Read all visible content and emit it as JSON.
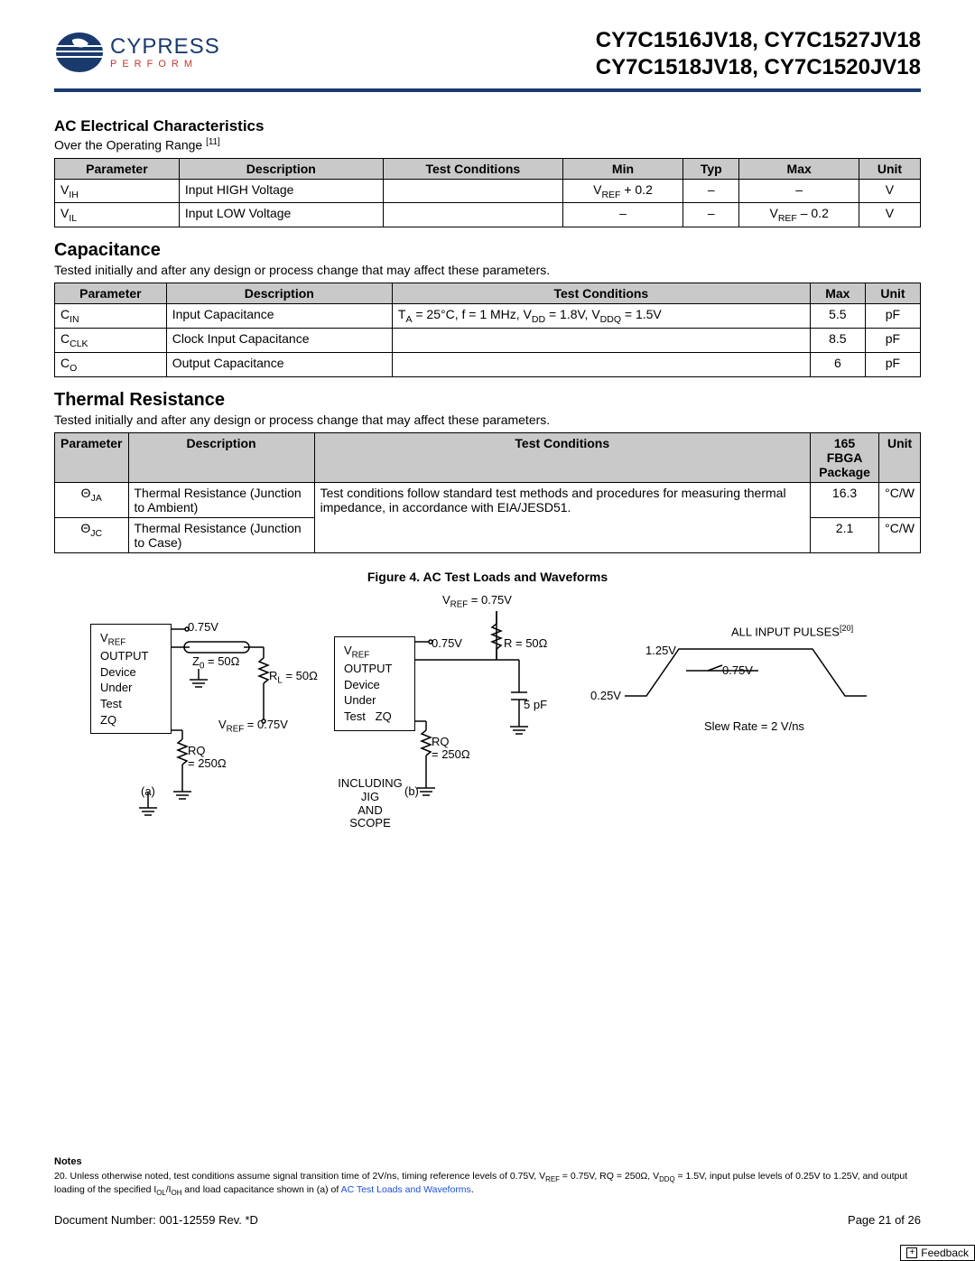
{
  "header": {
    "logo_name": "CYPRESS",
    "logo_tagline": "PERFORM",
    "part_line1": "CY7C1516JV18, CY7C1527JV18",
    "part_line2": "CY7C1518JV18, CY7C1520JV18"
  },
  "ac": {
    "title": "AC Electrical Characteristics",
    "subtitle_prefix": "Over the Operating Range ",
    "subtitle_ref": "[11]",
    "columns": [
      "Parameter",
      "Description",
      "Test Conditions",
      "Min",
      "Typ",
      "Max",
      "Unit"
    ],
    "rows": [
      {
        "param_base": "V",
        "param_sub": "IH",
        "desc": "Input HIGH Voltage",
        "cond": "",
        "min_html": "V<sub>REF</sub> + 0.2",
        "typ": "–",
        "max_html": "–",
        "unit": "V"
      },
      {
        "param_base": "V",
        "param_sub": "IL",
        "desc": "Input LOW Voltage",
        "cond": "",
        "min_html": "–",
        "typ": "–",
        "max_html": "V<sub>REF</sub> – 0.2",
        "unit": "V"
      }
    ]
  },
  "cap": {
    "title": "Capacitance",
    "subtitle": "Tested initially and after any design or process change that may affect these parameters.",
    "columns": [
      "Parameter",
      "Description",
      "Test Conditions",
      "Max",
      "Unit"
    ],
    "cond_html": "T<sub>A</sub> = 25°C, f = 1 MHz, V<sub>DD</sub> = 1.8V, V<sub>DDQ</sub> = 1.5V",
    "rows": [
      {
        "param_base": "C",
        "param_sub": "IN",
        "desc": "Input Capacitance",
        "max": "5.5",
        "unit": "pF"
      },
      {
        "param_base": "C",
        "param_sub": "CLK",
        "desc": "Clock Input Capacitance",
        "max": "8.5",
        "unit": "pF"
      },
      {
        "param_base": "C",
        "param_sub": "O",
        "desc": "Output Capacitance",
        "max": "6",
        "unit": "pF"
      }
    ]
  },
  "thermal": {
    "title": "Thermal Resistance",
    "subtitle": "Tested initially and after any design or process change that may affect these parameters.",
    "columns": [
      "Parameter",
      "Description",
      "Test Conditions",
      "165 FBGA Package",
      "Unit"
    ],
    "cond": "Test conditions follow standard test methods and procedures for measuring thermal impedance, in accordance with EIA/JESD51.",
    "rows": [
      {
        "param_html": "Θ<sub>JA</sub>",
        "desc": "Thermal Resistance (Junction to Ambient)",
        "val": "16.3",
        "unit": "°C/W"
      },
      {
        "param_html": "Θ<sub>JC</sub>",
        "desc": "Thermal Resistance (Junction to Case)",
        "val": "2.1",
        "unit": "°C/W"
      }
    ]
  },
  "figure": {
    "caption": "Figure 4.  AC Test Loads and Waveforms",
    "box_a_lines": [
      "V<sub>REF</sub>",
      "OUTPUT",
      "Device",
      "Under",
      "Test",
      "ZQ"
    ],
    "box_b_lines": [
      "V<sub>REF</sub>",
      "OUTPUT",
      "Device",
      "Under",
      "Test&nbsp;&nbsp;&nbsp;ZQ"
    ],
    "label_075v_a": "0.75V",
    "label_075v_b": "0.75V",
    "label_z0": "Z<sub>0</sub> = 50Ω",
    "label_rl": "R<sub>L</sub> = 50Ω",
    "label_vref075_a": "V<sub>REF</sub> = 0.75V",
    "label_vref075_top": "V<sub>REF</sub> = 0.75V",
    "label_rq_a": "RQ = 250Ω",
    "label_rq_b": "RQ = 250Ω",
    "label_r50": "R = 50Ω",
    "label_5pf": "5 pF",
    "label_a": "(a)",
    "label_b": "(b)",
    "label_including": "INCLUDING JIG AND SCOPE",
    "pulse_title_html": "ALL INPUT PULSES<sup>[20]</sup>",
    "pulse_high": "1.25V",
    "pulse_mid": "0.75V",
    "pulse_low": "0.25V",
    "pulse_slew": "Slew Rate = 2 V/ns"
  },
  "notes": {
    "title": "Notes",
    "n20_prefix": "20. Unless otherwise noted, test conditions assume signal transition time of 2V/ns, timing reference levels of 0.75V, V",
    "n20_mid": " = 0.75V, RQ = 250Ω, V",
    "n20_mid2": " = 1.5V, input pulse levels of 0.25V to 1.25V, and output loading of the specified I",
    "n20_mid3": "/I",
    "n20_tail": " and load capacitance shown in (a) of ",
    "n20_link": "AC Test Loads and Waveforms",
    "n20_end": "."
  },
  "footer": {
    "doc": "Document Number: 001-12559 Rev. *D",
    "page": "Page 21 of 26",
    "feedback": "Feedback"
  },
  "style": {
    "hr_color": "#1a3a6e",
    "table_header_bg": "#c9c9c9",
    "link_color": "#1a4fd8"
  }
}
